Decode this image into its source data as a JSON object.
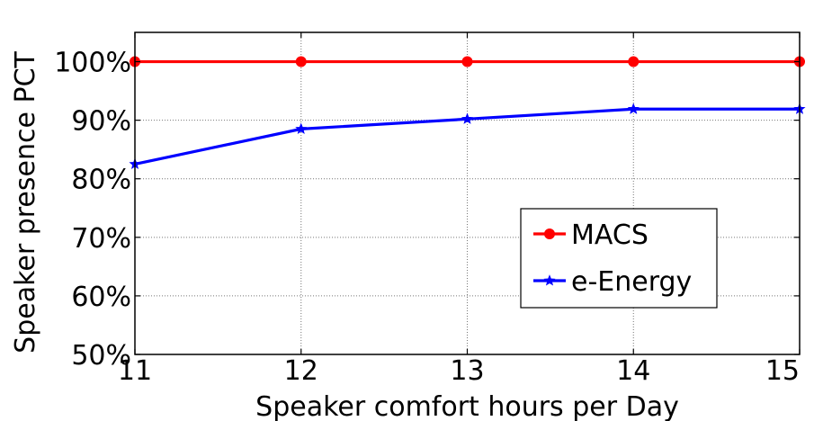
{
  "chart_data": {
    "type": "line",
    "title": "",
    "xlabel": "Speaker comfort hours per Day",
    "ylabel": "Speaker presence PCT",
    "x": [
      11,
      12,
      13,
      14,
      15
    ],
    "xlim": [
      11,
      15
    ],
    "ylim": [
      50,
      105
    ],
    "x_ticks": [
      11,
      12,
      13,
      14,
      15
    ],
    "y_ticks": [
      50,
      60,
      70,
      80,
      90,
      100
    ],
    "y_tick_labels": [
      "50%",
      "60%",
      "70%",
      "80%",
      "90%",
      "100%"
    ],
    "grid": true,
    "legend_position": "lower-right",
    "series": [
      {
        "name": "MACS",
        "color": "#ff0000",
        "marker": "circle",
        "values": [
          100,
          100,
          100,
          100,
          100
        ]
      },
      {
        "name": "e-Energy",
        "color": "#0000ff",
        "marker": "star",
        "values": [
          82.5,
          88.5,
          90.2,
          91.9,
          91.9
        ]
      }
    ]
  }
}
